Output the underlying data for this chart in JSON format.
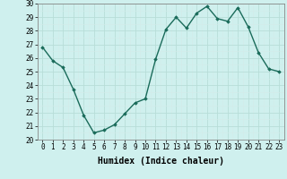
{
  "x": [
    0,
    1,
    2,
    3,
    4,
    5,
    6,
    7,
    8,
    9,
    10,
    11,
    12,
    13,
    14,
    15,
    16,
    17,
    18,
    19,
    20,
    21,
    22,
    23
  ],
  "y": [
    26.8,
    25.8,
    25.3,
    23.7,
    21.8,
    20.5,
    20.7,
    21.1,
    21.9,
    22.7,
    23.0,
    25.9,
    28.1,
    29.0,
    28.2,
    29.3,
    29.8,
    28.9,
    28.7,
    29.7,
    28.3,
    26.4,
    25.2,
    25.0
  ],
  "xlabel": "Humidex (Indice chaleur)",
  "ylim": [
    20,
    30
  ],
  "xlim": [
    -0.5,
    23.5
  ],
  "yticks": [
    20,
    21,
    22,
    23,
    24,
    25,
    26,
    27,
    28,
    29,
    30
  ],
  "xticks": [
    0,
    1,
    2,
    3,
    4,
    5,
    6,
    7,
    8,
    9,
    10,
    11,
    12,
    13,
    14,
    15,
    16,
    17,
    18,
    19,
    20,
    21,
    22,
    23
  ],
  "line_color": "#1a6b5a",
  "marker": "D",
  "marker_size": 1.8,
  "bg_color": "#cff0ee",
  "grid_major_color": "#b8ddd8",
  "grid_minor_color": "#d4ecea",
  "line_width": 1.0,
  "tick_fontsize": 5.5,
  "xlabel_fontsize": 7.0
}
